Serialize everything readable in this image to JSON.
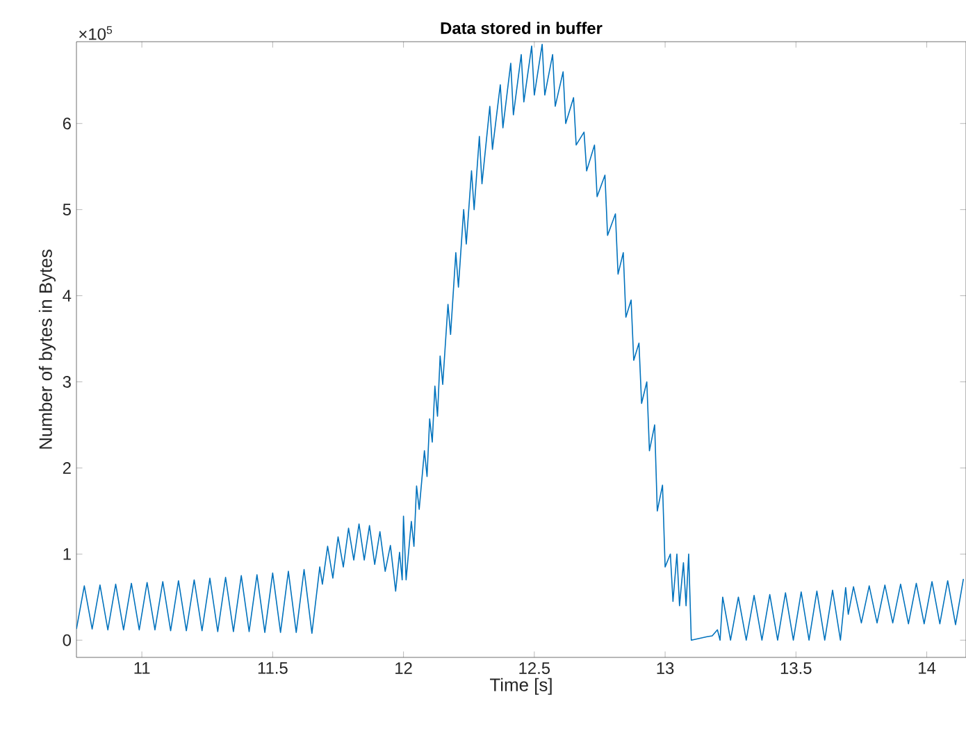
{
  "chart_data": {
    "type": "line",
    "title": "Data stored in buffer",
    "xlabel": "Time [s]",
    "ylabel": "Number of bytes in Bytes",
    "annotations": [
      "×10$^{5}$"
    ],
    "color": "#0072bd",
    "xlim": [
      10.75,
      14.15
    ],
    "ylim": [
      -0.2,
      6.95
    ],
    "xticks": [
      11,
      11.5,
      12,
      12.5,
      13,
      13.5,
      14
    ],
    "yticks": [
      0,
      1,
      2,
      3,
      4,
      5,
      6
    ],
    "x": [
      10.75,
      10.78,
      10.81,
      10.84,
      10.87,
      10.9,
      10.93,
      10.96,
      10.99,
      11.02,
      11.05,
      11.08,
      11.11,
      11.14,
      11.17,
      11.2,
      11.23,
      11.26,
      11.29,
      11.32,
      11.35,
      11.38,
      11.41,
      11.44,
      11.47,
      11.5,
      11.53,
      11.56,
      11.59,
      11.62,
      11.65,
      11.68,
      11.69,
      11.71,
      11.73,
      11.75,
      11.77,
      11.79,
      11.81,
      11.83,
      11.85,
      11.87,
      11.89,
      11.91,
      11.93,
      11.95,
      11.97,
      11.985,
      11.995,
      12.0,
      12.01,
      12.03,
      12.04,
      12.05,
      12.06,
      12.08,
      12.09,
      12.1,
      12.11,
      12.12,
      12.13,
      12.14,
      12.15,
      12.17,
      12.18,
      12.2,
      12.21,
      12.23,
      12.24,
      12.26,
      12.27,
      12.29,
      12.3,
      12.33,
      12.34,
      12.37,
      12.38,
      12.41,
      12.42,
      12.45,
      12.46,
      12.49,
      12.5,
      12.53,
      12.54,
      12.57,
      12.58,
      12.61,
      12.62,
      12.65,
      12.66,
      12.69,
      12.7,
      12.73,
      12.74,
      12.77,
      12.78,
      12.81,
      12.82,
      12.84,
      12.85,
      12.87,
      12.88,
      12.9,
      12.91,
      12.93,
      12.94,
      12.96,
      12.97,
      12.99,
      13.0,
      13.02,
      13.03,
      13.045,
      13.055,
      13.07,
      13.08,
      13.09,
      13.1,
      13.13,
      13.16,
      13.18,
      13.2,
      13.21,
      13.22,
      13.25,
      13.28,
      13.31,
      13.34,
      13.37,
      13.4,
      13.43,
      13.46,
      13.49,
      13.52,
      13.55,
      13.58,
      13.61,
      13.64,
      13.67,
      13.69,
      13.7,
      13.72,
      13.75,
      13.78,
      13.81,
      13.84,
      13.87,
      13.9,
      13.93,
      13.96,
      13.99,
      14.02,
      14.05,
      14.08,
      14.11,
      14.14
    ],
    "values": [
      0.13,
      0.63,
      0.13,
      0.64,
      0.12,
      0.65,
      0.12,
      0.66,
      0.12,
      0.67,
      0.12,
      0.68,
      0.11,
      0.69,
      0.11,
      0.7,
      0.11,
      0.72,
      0.1,
      0.73,
      0.1,
      0.75,
      0.1,
      0.76,
      0.09,
      0.78,
      0.09,
      0.8,
      0.09,
      0.82,
      0.08,
      0.85,
      0.65,
      1.09,
      0.72,
      1.2,
      0.85,
      1.3,
      0.93,
      1.35,
      0.93,
      1.33,
      0.88,
      1.26,
      0.8,
      1.1,
      0.57,
      1.02,
      0.7,
      1.44,
      0.7,
      1.38,
      1.09,
      1.79,
      1.52,
      2.2,
      1.9,
      2.57,
      2.3,
      2.95,
      2.6,
      3.3,
      2.97,
      3.9,
      3.55,
      4.5,
      4.1,
      5.0,
      4.6,
      5.45,
      5.0,
      5.85,
      5.3,
      6.2,
      5.7,
      6.45,
      5.95,
      6.7,
      6.1,
      6.8,
      6.25,
      6.9,
      6.33,
      6.92,
      6.33,
      6.8,
      6.2,
      6.6,
      6.0,
      6.3,
      5.75,
      5.9,
      5.45,
      5.75,
      5.15,
      5.4,
      4.7,
      4.95,
      4.25,
      4.5,
      3.75,
      3.95,
      3.25,
      3.45,
      2.75,
      3.0,
      2.2,
      2.5,
      1.5,
      1.8,
      0.85,
      1.0,
      0.45,
      1.0,
      0.4,
      0.9,
      0.4,
      1.0,
      0.0,
      0.02,
      0.04,
      0.05,
      0.12,
      0.0,
      0.5,
      0.0,
      0.5,
      0.0,
      0.52,
      0.0,
      0.53,
      0.0,
      0.55,
      0.0,
      0.56,
      0.0,
      0.57,
      0.0,
      0.58,
      0.0,
      0.61,
      0.3,
      0.62,
      0.2,
      0.63,
      0.2,
      0.64,
      0.2,
      0.65,
      0.19,
      0.66,
      0.19,
      0.68,
      0.19,
      0.69,
      0.18,
      0.71
    ]
  }
}
